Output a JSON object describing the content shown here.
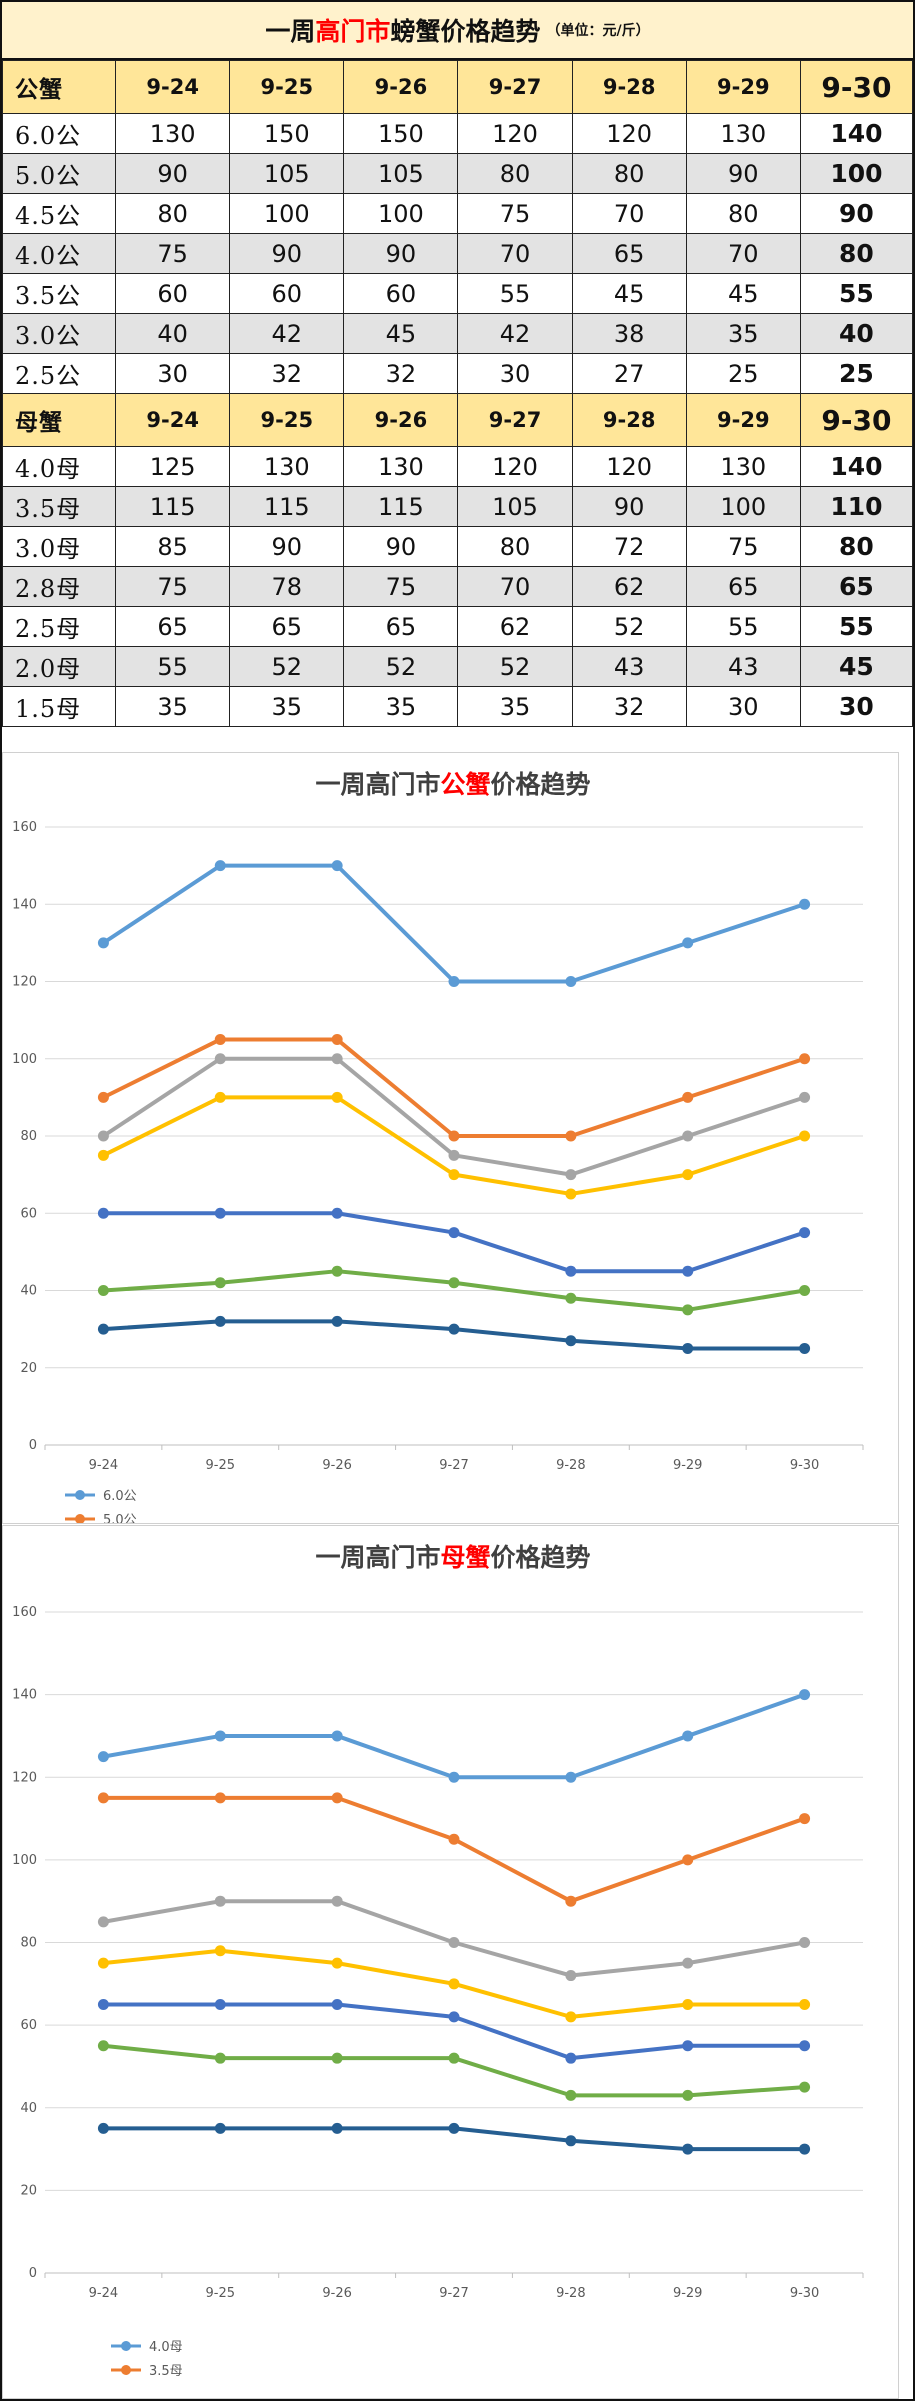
{
  "table": {
    "title_prefix": "一周",
    "title_highlight": "高门市",
    "title_suffix": "螃蟹价格趋势",
    "unit": "（单位：元/斤）",
    "sections": [
      {
        "label": "公蟹",
        "dates": [
          "9-24",
          "9-25",
          "9-26",
          "9-27",
          "9-28",
          "9-29",
          "9-30"
        ],
        "rows": [
          {
            "size": "6.0公",
            "values": [
              130,
              150,
              150,
              120,
              120,
              130,
              140
            ]
          },
          {
            "size": "5.0公",
            "values": [
              90,
              105,
              105,
              80,
              80,
              90,
              100
            ]
          },
          {
            "size": "4.5公",
            "values": [
              80,
              100,
              100,
              75,
              70,
              80,
              90
            ]
          },
          {
            "size": "4.0公",
            "values": [
              75,
              90,
              90,
              70,
              65,
              70,
              80
            ]
          },
          {
            "size": "3.5公",
            "values": [
              60,
              60,
              60,
              55,
              45,
              45,
              55
            ]
          },
          {
            "size": "3.0公",
            "values": [
              40,
              42,
              45,
              42,
              38,
              35,
              40
            ]
          },
          {
            "size": "2.5公",
            "values": [
              30,
              32,
              32,
              30,
              27,
              25,
              25
            ]
          }
        ]
      },
      {
        "label": "母蟹",
        "dates": [
          "9-24",
          "9-25",
          "9-26",
          "9-27",
          "9-28",
          "9-29",
          "9-30"
        ],
        "rows": [
          {
            "size": "4.0母",
            "values": [
              125,
              130,
              130,
              120,
              120,
              130,
              140
            ]
          },
          {
            "size": "3.5母",
            "values": [
              115,
              115,
              115,
              105,
              90,
              100,
              110
            ]
          },
          {
            "size": "3.0母",
            "values": [
              85,
              90,
              90,
              80,
              72,
              75,
              80
            ]
          },
          {
            "size": "2.8母",
            "values": [
              75,
              78,
              75,
              70,
              62,
              65,
              65
            ]
          },
          {
            "size": "2.5母",
            "values": [
              65,
              65,
              65,
              62,
              52,
              55,
              55
            ]
          },
          {
            "size": "2.0母",
            "values": [
              55,
              52,
              52,
              52,
              43,
              43,
              45
            ]
          },
          {
            "size": "1.5母",
            "values": [
              35,
              35,
              35,
              35,
              32,
              30,
              30
            ]
          }
        ]
      }
    ]
  },
  "chart_data": [
    {
      "type": "line",
      "title_prefix": "一周高门市",
      "title_highlight": "公蟹",
      "title_suffix": "价格趋势",
      "categories": [
        "9-24",
        "9-25",
        "9-26",
        "9-27",
        "9-28",
        "9-29",
        "9-30"
      ],
      "ylim": [
        0,
        160
      ],
      "yticks": [
        0,
        20,
        40,
        60,
        80,
        100,
        120,
        140,
        160
      ],
      "grid": true,
      "legend": "bottom-left",
      "series": [
        {
          "name": "6.0公",
          "color": "#5b9bd5",
          "values": [
            130,
            150,
            150,
            120,
            120,
            130,
            140
          ]
        },
        {
          "name": "5.0公",
          "color": "#ed7d31",
          "values": [
            90,
            105,
            105,
            80,
            80,
            90,
            100
          ]
        },
        {
          "name": "",
          "color": "#a5a5a5",
          "values": [
            80,
            100,
            100,
            75,
            70,
            80,
            90
          ]
        },
        {
          "name": "",
          "color": "#ffc000",
          "values": [
            75,
            90,
            90,
            70,
            65,
            70,
            80
          ]
        },
        {
          "name": "",
          "color": "#4472c4",
          "values": [
            60,
            60,
            60,
            55,
            45,
            45,
            55
          ]
        },
        {
          "name": "",
          "color": "#70ad47",
          "values": [
            40,
            42,
            45,
            42,
            38,
            35,
            40
          ]
        },
        {
          "name": "",
          "color": "#255e91",
          "values": [
            30,
            32,
            32,
            30,
            27,
            25,
            25
          ]
        }
      ]
    },
    {
      "type": "line",
      "title_prefix": "一周高门市",
      "title_highlight": "母蟹",
      "title_suffix": "价格趋势",
      "categories": [
        "9-24",
        "9-25",
        "9-26",
        "9-27",
        "9-28",
        "9-29",
        "9-30"
      ],
      "ylim": [
        0,
        160
      ],
      "yticks": [
        0,
        20,
        40,
        60,
        80,
        100,
        120,
        140,
        160
      ],
      "grid": true,
      "legend": "bottom-left",
      "series": [
        {
          "name": "4.0母",
          "color": "#5b9bd5",
          "values": [
            125,
            130,
            130,
            120,
            120,
            130,
            140
          ]
        },
        {
          "name": "3.5母",
          "color": "#ed7d31",
          "values": [
            115,
            115,
            115,
            105,
            90,
            100,
            110
          ]
        },
        {
          "name": "",
          "color": "#a5a5a5",
          "values": [
            85,
            90,
            90,
            80,
            72,
            75,
            80
          ]
        },
        {
          "name": "",
          "color": "#ffc000",
          "values": [
            75,
            78,
            75,
            70,
            62,
            65,
            65
          ]
        },
        {
          "name": "",
          "color": "#4472c4",
          "values": [
            65,
            65,
            65,
            62,
            52,
            55,
            55
          ]
        },
        {
          "name": "",
          "color": "#70ad47",
          "values": [
            55,
            52,
            52,
            52,
            43,
            43,
            45
          ]
        },
        {
          "name": "",
          "color": "#255e91",
          "values": [
            35,
            35,
            35,
            35,
            32,
            30,
            30
          ]
        }
      ]
    }
  ]
}
